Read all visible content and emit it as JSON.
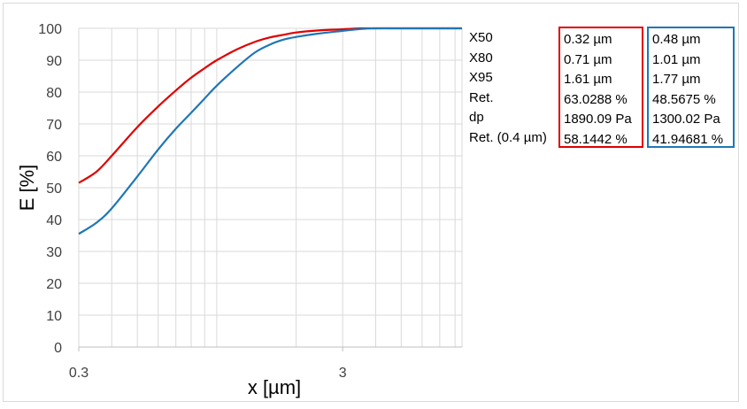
{
  "chart_data": {
    "type": "line",
    "xlabel": "x [µm]",
    "ylabel": "E [%]",
    "xscale": "log",
    "xlim": [
      0.3,
      8.5
    ],
    "ylim": [
      0,
      100
    ],
    "x_tick_labels": [
      "0.3",
      "3"
    ],
    "y_tick_labels": [
      "0",
      "10",
      "20",
      "30",
      "40",
      "50",
      "60",
      "70",
      "80",
      "90",
      "100"
    ],
    "grid": true,
    "series": [
      {
        "color": "#e00000",
        "x": [
          0.3,
          0.35,
          0.4,
          0.5,
          0.6,
          0.7,
          0.8,
          0.9,
          1.0,
          1.2,
          1.4,
          1.6,
          1.8,
          2.0,
          2.4,
          3.0,
          3.5,
          4.0,
          5.0,
          6.0,
          8.5
        ],
        "y": [
          51.5,
          55.0,
          60.0,
          69.0,
          75.5,
          80.5,
          84.5,
          87.5,
          90.0,
          93.5,
          95.8,
          97.2,
          98.0,
          98.7,
          99.3,
          99.7,
          100,
          100,
          100,
          100,
          100
        ]
      },
      {
        "color": "#1f77b4",
        "x": [
          0.3,
          0.35,
          0.4,
          0.5,
          0.6,
          0.7,
          0.8,
          0.9,
          1.0,
          1.2,
          1.4,
          1.6,
          1.8,
          2.0,
          2.4,
          3.0,
          3.5,
          4.0,
          5.0,
          6.0,
          8.5
        ],
        "y": [
          35.5,
          39.0,
          43.5,
          53.5,
          62.0,
          68.5,
          73.5,
          78.0,
          82.0,
          88.0,
          92.5,
          95.0,
          96.5,
          97.3,
          98.3,
          99.2,
          99.8,
          100,
          100,
          100,
          100
        ]
      }
    ]
  },
  "table": {
    "labels": [
      "X50",
      "X80",
      "X95",
      "Ret.",
      "dp",
      "Ret. (0.4 µm)"
    ],
    "red_values": [
      "0.32 µm",
      "0.71 µm",
      "1.61 µm",
      "63.0288 %",
      "1890.09 Pa",
      "58.1442 %"
    ],
    "blue_values": [
      "0.48 µm",
      "1.01 µm",
      "1.77 µm",
      "48.5675 %",
      "1300.02 Pa",
      "41.94681 %"
    ],
    "red_border": "#e00000",
    "blue_border": "#1f77b4"
  }
}
